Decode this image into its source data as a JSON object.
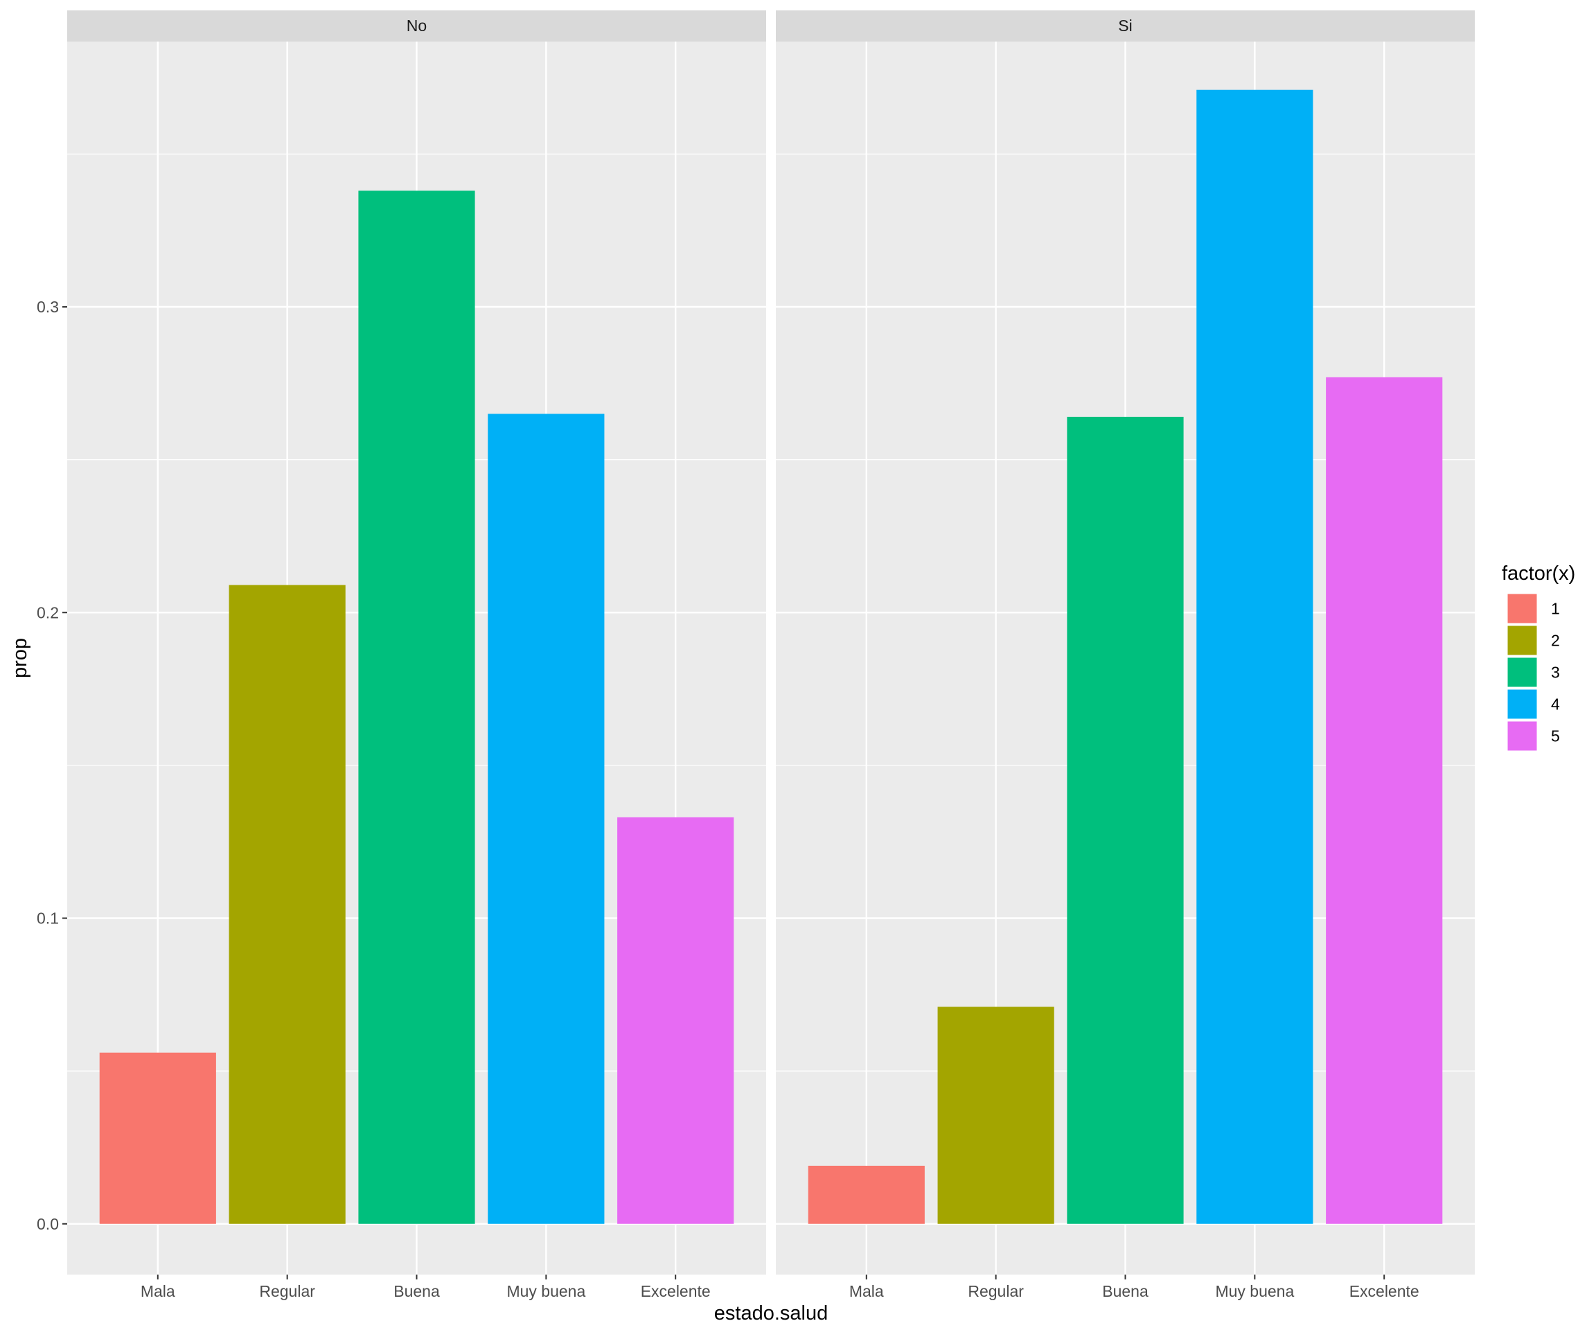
{
  "chart_data": {
    "type": "bar",
    "xlabel": "estado.salud",
    "ylabel": "prop",
    "ylim": [
      -0.0166,
      0.3868
    ],
    "yticks": [
      0.0,
      0.1,
      0.2,
      0.3
    ],
    "ytick_labels": [
      "0.0",
      "0.1",
      "0.2",
      "0.3"
    ],
    "categories": [
      "Mala",
      "Regular",
      "Buena",
      "Muy buena",
      "Excelente"
    ],
    "facets": [
      {
        "label": "No",
        "values": [
          0.056,
          0.209,
          0.338,
          0.265,
          0.133
        ]
      },
      {
        "label": "Si",
        "values": [
          0.019,
          0.071,
          0.264,
          0.371,
          0.277
        ]
      }
    ],
    "legend": {
      "title": "factor(x)",
      "placement": "right",
      "entries": [
        {
          "label": "1",
          "color": "#F8766D"
        },
        {
          "label": "2",
          "color": "#A3A500"
        },
        {
          "label": "3",
          "color": "#00BF7D"
        },
        {
          "label": "4",
          "color": "#00B0F6"
        },
        {
          "label": "5",
          "color": "#E76BF3"
        }
      ]
    },
    "grid": true
  }
}
